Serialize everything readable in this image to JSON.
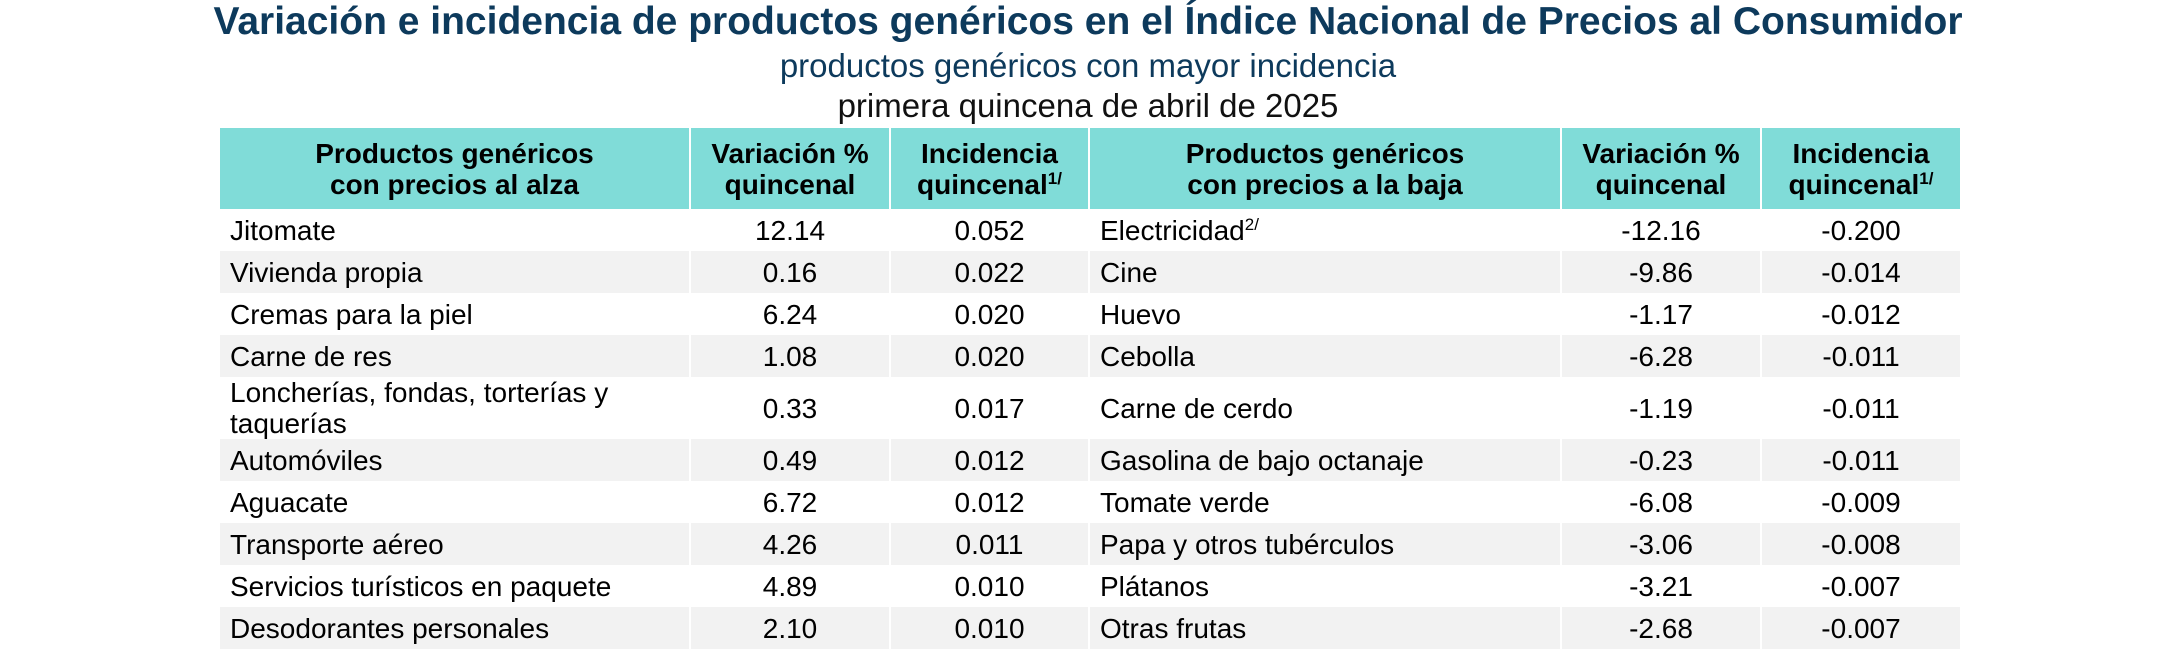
{
  "header": {
    "title": "Variación e incidencia de productos genéricos en el Índice Nacional de Precios al Consumidor",
    "subtitle": "productos genéricos con mayor incidencia",
    "period": "primera quincena de abril de 2025"
  },
  "table": {
    "columns": [
      {
        "text": "Productos genéricos\ncon precios al alza"
      },
      {
        "text": "Variación %\nquincenal"
      },
      {
        "text": "Incidencia\nquincenal",
        "note": "1/"
      },
      {
        "text": "Productos genéricos\ncon precios a la baja"
      },
      {
        "text": "Variación %\nquincenal"
      },
      {
        "text": "Incidencia\nquincenal",
        "note": "1/"
      }
    ],
    "rows": [
      [
        "Jitomate",
        "12.14",
        "0.052",
        {
          "text": "Electricidad",
          "note": "2/"
        },
        "-12.16",
        "-0.200"
      ],
      [
        "Vivienda propia",
        "0.16",
        "0.022",
        "Cine",
        "-9.86",
        "-0.014"
      ],
      [
        "Cremas para la piel",
        "6.24",
        "0.020",
        "Huevo",
        "-1.17",
        "-0.012"
      ],
      [
        "Carne de res",
        "1.08",
        "0.020",
        "Cebolla",
        "-6.28",
        "-0.011"
      ],
      [
        "Loncherías, fondas, torterías y taquerías",
        "0.33",
        "0.017",
        "Carne de cerdo",
        "-1.19",
        "-0.011"
      ],
      [
        "Automóviles",
        "0.49",
        "0.012",
        "Gasolina de bajo octanaje",
        "-0.23",
        "-0.011"
      ],
      [
        "Aguacate",
        "6.72",
        "0.012",
        "Tomate verde",
        "-6.08",
        "-0.009"
      ],
      [
        "Transporte aéreo",
        "4.26",
        "0.011",
        "Papa y otros tubérculos",
        "-3.06",
        "-0.008"
      ],
      [
        "Servicios turísticos en paquete",
        "4.89",
        "0.010",
        "Plátanos",
        "-3.21",
        "-0.007"
      ],
      [
        "Desodorantes personales",
        "2.10",
        "0.010",
        "Otras frutas",
        "-2.68",
        "-0.007"
      ]
    ]
  }
}
